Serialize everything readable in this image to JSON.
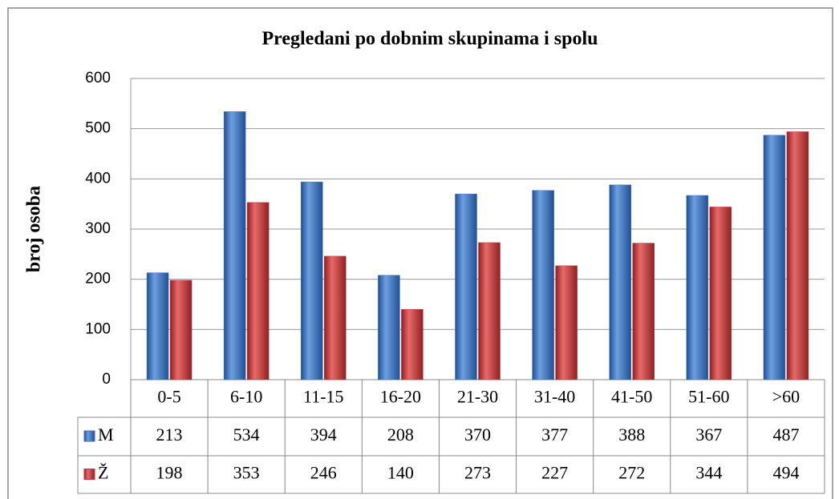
{
  "chart_data": {
    "type": "bar",
    "title": "Pregledani po dobnim skupinama i spolu",
    "y_label": "broj osoba",
    "categories": [
      "0-5",
      "6-10",
      "11-15",
      "16-20",
      "21-30",
      "31-40",
      "41-50",
      "51-60",
      ">60"
    ],
    "series": [
      {
        "name": "M",
        "color": "#3b74c6",
        "values": [
          213,
          534,
          394,
          208,
          370,
          377,
          388,
          367,
          487
        ]
      },
      {
        "name": "Ž",
        "color": "#c63a3a",
        "values": [
          198,
          353,
          246,
          140,
          273,
          227,
          272,
          344,
          494
        ]
      }
    ],
    "ylim": [
      0,
      600
    ],
    "yticks": [
      0,
      100,
      200,
      300,
      400,
      500,
      600
    ],
    "grid": true
  }
}
